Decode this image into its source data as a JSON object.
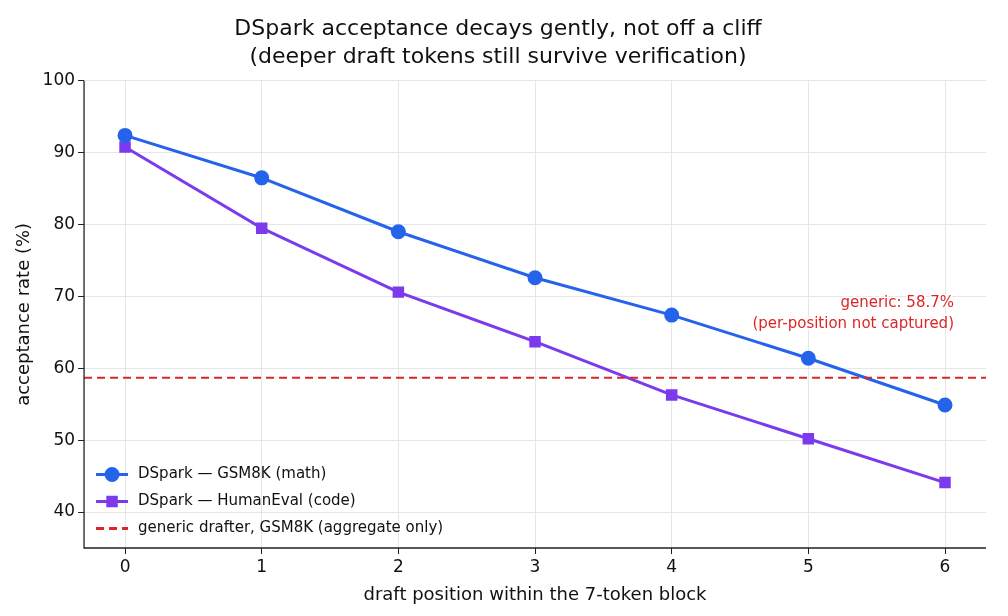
{
  "chart_data": {
    "type": "line",
    "title": "DSpark acceptance decays gently, not off a cliff",
    "subtitle": "(deeper draft tokens still survive verification)",
    "xlabel": "draft position within the 7-token block",
    "ylabel": "acceptance rate (%)",
    "x": [
      0,
      1,
      2,
      3,
      4,
      5,
      6
    ],
    "series": [
      {
        "name": "DSpark — GSM8K (math)",
        "color": "#2563eb",
        "marker": "circle",
        "values": [
          92.4,
          86.5,
          79.0,
          72.6,
          67.4,
          61.4,
          54.9
        ]
      },
      {
        "name": "DSpark — HumanEval (code)",
        "color": "#7c3aed",
        "marker": "square",
        "values": [
          90.8,
          79.5,
          70.6,
          63.7,
          56.3,
          50.2,
          44.1
        ]
      }
    ],
    "ref_lines": [
      {
        "axis": "y",
        "value": 58.7,
        "label": "generic drafter, GSM8K (aggregate only)",
        "color": "#dc2626",
        "line_style": "dashed"
      }
    ],
    "annotations": [
      "generic: 58.7%\n(per-position not captured)"
    ],
    "xlim": [
      -0.3,
      6.3
    ],
    "xticks": [
      0,
      1,
      2,
      3,
      4,
      5,
      6
    ],
    "ylim": [
      35,
      100
    ],
    "yticks": [
      40,
      50,
      60,
      70,
      80,
      90,
      100
    ],
    "grid": true,
    "legend": "bottom left",
    "line_style": "solid"
  }
}
